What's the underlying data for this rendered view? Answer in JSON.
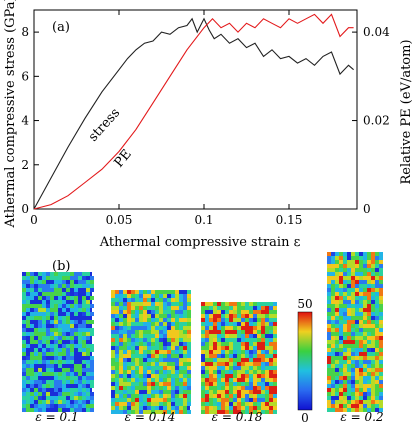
{
  "chart_data": {
    "type": "line",
    "panel_label": "(a)",
    "xlabel": "Athermal compressive strain ε",
    "ylabel_left": "Athermal compressive stress (GPa)",
    "ylabel_right": "Relative PE (eV/atom)",
    "xlim": [
      0,
      0.19
    ],
    "ylim_left": [
      0,
      9
    ],
    "ylim_right": [
      0,
      0.045
    ],
    "x_ticks": [
      "0",
      "0.05",
      "0.1",
      "0.15"
    ],
    "x_tick_values": [
      0,
      0.05,
      0.1,
      0.15
    ],
    "y_left_ticks": [
      "0",
      "2",
      "4",
      "6",
      "8"
    ],
    "y_left_tick_values": [
      0,
      2,
      4,
      6,
      8
    ],
    "y_right_ticks": [
      "0",
      "0.02",
      "0.04"
    ],
    "y_right_tick_values": [
      0,
      0.02,
      0.04
    ],
    "grid": false,
    "series": [
      {
        "name": "stress",
        "axis": "left",
        "color": "#222222",
        "x": [
          0,
          0.005,
          0.01,
          0.02,
          0.03,
          0.04,
          0.05,
          0.055,
          0.06,
          0.065,
          0.07,
          0.075,
          0.08,
          0.085,
          0.09,
          0.093,
          0.096,
          0.1,
          0.103,
          0.106,
          0.11,
          0.115,
          0.12,
          0.125,
          0.13,
          0.135,
          0.14,
          0.145,
          0.15,
          0.155,
          0.16,
          0.165,
          0.17,
          0.175,
          0.18,
          0.185,
          0.188
        ],
        "values": [
          0,
          0.7,
          1.4,
          2.8,
          4.1,
          5.3,
          6.3,
          6.8,
          7.2,
          7.5,
          7.6,
          8.0,
          7.9,
          8.2,
          8.3,
          8.6,
          8.0,
          8.6,
          8.1,
          7.7,
          7.9,
          7.5,
          7.7,
          7.3,
          7.5,
          6.9,
          7.2,
          6.8,
          6.9,
          6.6,
          6.8,
          6.5,
          6.9,
          7.1,
          6.1,
          6.5,
          6.3
        ]
      },
      {
        "name": "PE",
        "axis": "right",
        "color": "#e31a1c",
        "x": [
          0,
          0.01,
          0.02,
          0.03,
          0.04,
          0.05,
          0.06,
          0.07,
          0.08,
          0.09,
          0.1,
          0.105,
          0.11,
          0.115,
          0.12,
          0.125,
          0.13,
          0.135,
          0.14,
          0.145,
          0.15,
          0.155,
          0.16,
          0.165,
          0.17,
          0.175,
          0.18,
          0.185,
          0.188
        ],
        "values": [
          0,
          0.001,
          0.003,
          0.006,
          0.009,
          0.013,
          0.018,
          0.024,
          0.03,
          0.036,
          0.041,
          0.043,
          0.041,
          0.042,
          0.04,
          0.042,
          0.041,
          0.043,
          0.042,
          0.041,
          0.043,
          0.042,
          0.043,
          0.044,
          0.042,
          0.044,
          0.039,
          0.041,
          0.041
        ]
      }
    ],
    "annotations": [
      {
        "text": "stress",
        "x": 0.045,
        "y_left": 4.1
      },
      {
        "text": "PE",
        "x": 0.068,
        "y_left": 2.8
      }
    ]
  },
  "panel_b": {
    "panel_label": "(b)",
    "colorbar": {
      "max_label": "50",
      "min_label": "0"
    },
    "snapshots": [
      {
        "caption": "ε = 0.1",
        "strain": 0.1
      },
      {
        "caption": "ε = 0.14",
        "strain": 0.14
      },
      {
        "caption": "ε = 0.18",
        "strain": 0.18
      },
      {
        "caption": "ε = 0.2",
        "strain": 0.2
      }
    ]
  }
}
